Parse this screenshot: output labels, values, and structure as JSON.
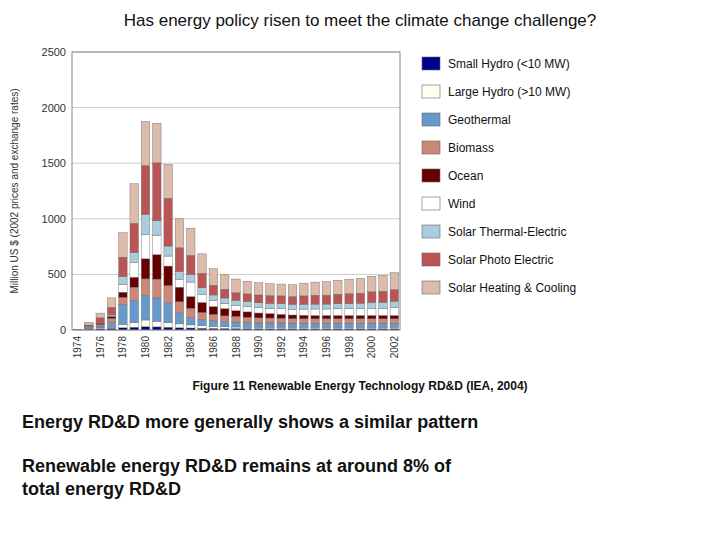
{
  "chart_data": {
    "type": "bar",
    "stacked": true,
    "grid": true,
    "legend": "right",
    "title": "Has energy policy risen to meet the climate change challenge?",
    "ylabel": "Million US $ (2002 prices and exchange rates)",
    "annotations": [
      "Figure 11 Renewable Energy Technology RD&D (IEA, 2004)",
      "Energy RD&D more generally shows a similar pattern",
      "Renewable energy RD&D remains at around 8% of\ntotal energy RD&D"
    ],
    "categories": [
      "1974",
      null,
      "1976",
      null,
      "1978",
      null,
      "1980",
      null,
      "1982",
      null,
      "1984",
      null,
      "1986",
      null,
      "1988",
      null,
      "1990",
      null,
      "1992",
      null,
      "1994",
      null,
      "1996",
      null,
      "1998",
      null,
      "2000",
      null,
      "2002"
    ],
    "ylim": [
      0,
      2500
    ],
    "yticks": [
      0,
      500,
      1000,
      1500,
      2000,
      2500
    ],
    "series": [
      {
        "name": "Small Hydro (<10 MW)",
        "color": "#00008B",
        "values": [
          5,
          8,
          12,
          15,
          20,
          25,
          30,
          28,
          25,
          20,
          18,
          16,
          15,
          14,
          13,
          13,
          12,
          12,
          12,
          12,
          12,
          12,
          12,
          12,
          12,
          12,
          12,
          12,
          12
        ]
      },
      {
        "name": "Large Hydro (>10 MW)",
        "color": "#FFFFF0",
        "values": [
          2,
          5,
          8,
          10,
          30,
          40,
          60,
          50,
          40,
          35,
          28,
          22,
          18,
          16,
          14,
          12,
          12,
          12,
          11,
          11,
          11,
          11,
          11,
          11,
          11,
          11,
          11,
          11,
          11
        ]
      },
      {
        "name": "Geothermal",
        "color": "#6699CC",
        "values": [
          0,
          8,
          15,
          40,
          180,
          200,
          220,
          210,
          180,
          100,
          65,
          55,
          50,
          45,
          45,
          42,
          40,
          40,
          40,
          38,
          38,
          38,
          38,
          38,
          38,
          38,
          38,
          38,
          38
        ]
      },
      {
        "name": "Biomass",
        "color": "#CC8877",
        "values": [
          0,
          8,
          15,
          40,
          65,
          120,
          150,
          170,
          155,
          100,
          85,
          65,
          58,
          52,
          50,
          48,
          45,
          44,
          42,
          40,
          40,
          40,
          40,
          40,
          40,
          40,
          40,
          40,
          40
        ]
      },
      {
        "name": "Ocean",
        "color": "#660000",
        "values": [
          0,
          4,
          12,
          18,
          45,
          90,
          180,
          220,
          175,
          130,
          105,
          90,
          70,
          65,
          52,
          48,
          44,
          40,
          36,
          34,
          32,
          30,
          30,
          30,
          30,
          30,
          30,
          30,
          30
        ]
      },
      {
        "name": "Wind",
        "color": "#FFFFFF",
        "values": [
          0,
          2,
          4,
          8,
          70,
          130,
          220,
          175,
          90,
          70,
          130,
          70,
          52,
          48,
          48,
          48,
          48,
          48,
          52,
          52,
          55,
          58,
          58,
          62,
          62,
          62,
          65,
          65,
          70
        ]
      },
      {
        "name": "Solar Thermal-Electric",
        "color": "#AACCDD",
        "values": [
          0,
          2,
          4,
          8,
          70,
          90,
          180,
          130,
          90,
          70,
          70,
          62,
          52,
          48,
          44,
          44,
          44,
          44,
          44,
          44,
          44,
          44,
          44,
          44,
          44,
          48,
          52,
          52,
          58
        ]
      },
      {
        "name": "Solar Photo Electric",
        "color": "#BB5555",
        "values": [
          0,
          8,
          40,
          65,
          175,
          265,
          440,
          520,
          430,
          215,
          170,
          130,
          88,
          78,
          70,
          70,
          70,
          70,
          70,
          70,
          75,
          80,
          80,
          85,
          90,
          90,
          95,
          100,
          105
        ]
      },
      {
        "name": "Solar Heating & Cooling",
        "color": "#DDBBAA",
        "values": [
          0,
          25,
          42,
          85,
          220,
          355,
          395,
          355,
          305,
          260,
          245,
          175,
          148,
          130,
          122,
          114,
          110,
          106,
          106,
          106,
          114,
          118,
          122,
          126,
          130,
          135,
          140,
          144,
          152
        ]
      }
    ]
  }
}
